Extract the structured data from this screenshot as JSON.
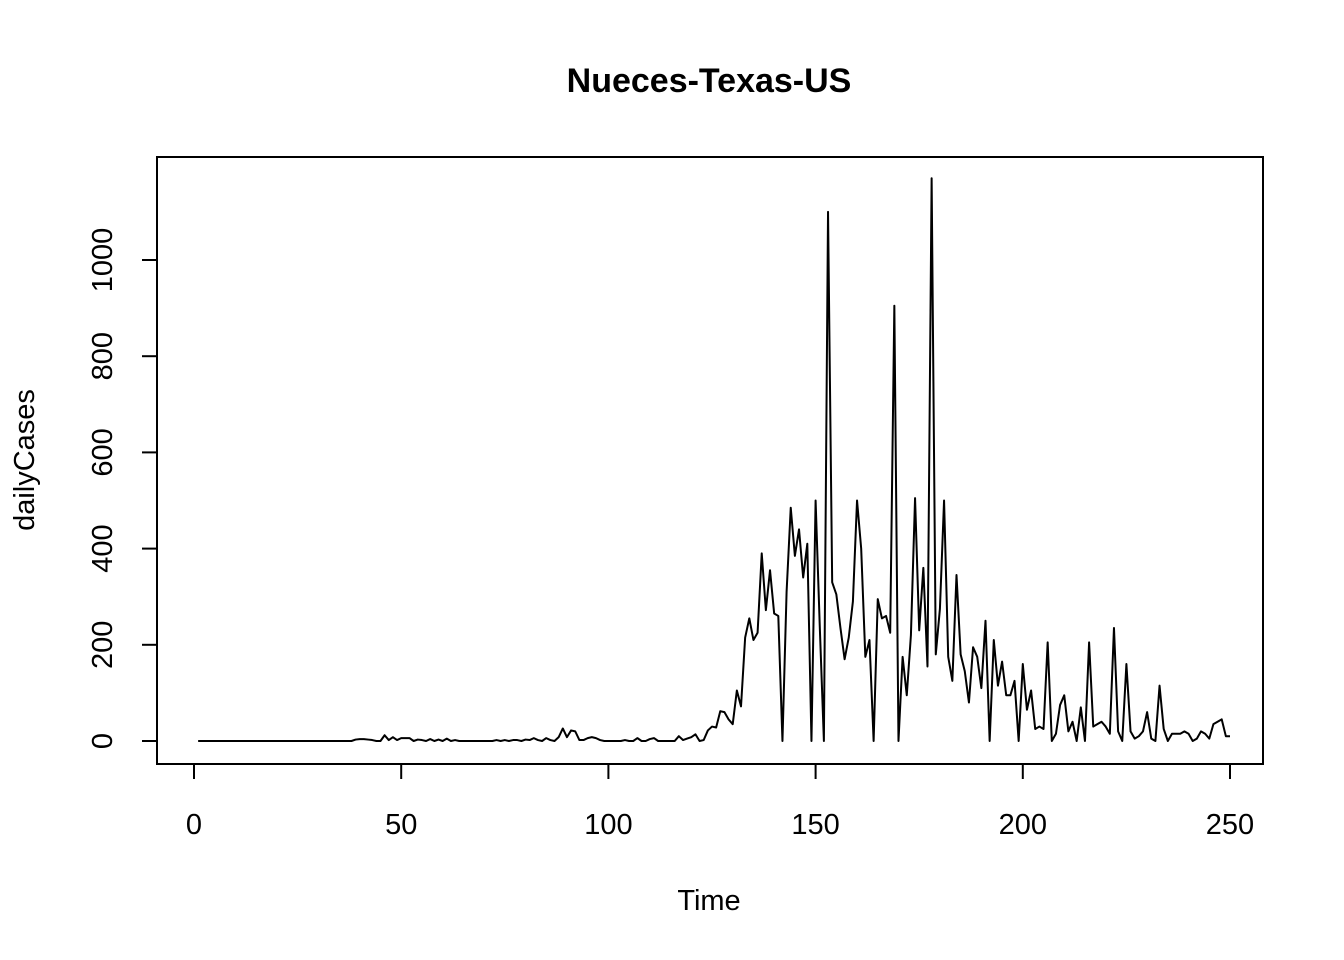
{
  "chart_data": {
    "type": "line",
    "title": "Nueces-Texas-US",
    "xlabel": "Time",
    "ylabel": "dailyCases",
    "xlim": [
      1,
      248
    ],
    "ylim": [
      0,
      1170
    ],
    "xticks": [
      0,
      50,
      100,
      150,
      200,
      250
    ],
    "yticks": [
      0,
      200,
      400,
      600,
      800,
      1000
    ],
    "grid": false,
    "legend": "none",
    "series": [
      {
        "values": [
          0,
          0,
          0,
          0,
          0,
          0,
          0,
          0,
          0,
          0,
          0,
          0,
          0,
          0,
          0,
          0,
          0,
          0,
          0,
          0,
          0,
          0,
          0,
          0,
          0,
          0,
          0,
          0,
          0,
          0,
          0,
          0,
          0,
          0,
          0,
          0,
          0,
          0,
          3,
          4,
          4,
          3,
          2,
          0,
          0,
          12,
          2,
          8,
          2,
          6,
          6,
          6,
          0,
          3,
          2,
          0,
          4,
          0,
          3,
          0,
          5,
          0,
          2,
          0,
          0,
          0,
          0,
          0,
          0,
          0,
          0,
          0,
          2,
          0,
          2,
          0,
          2,
          2,
          0,
          3,
          2,
          6,
          2,
          0,
          6,
          2,
          0,
          8,
          26,
          8,
          22,
          20,
          2,
          2,
          6,
          8,
          6,
          2,
          0,
          0,
          0,
          0,
          0,
          2,
          0,
          0,
          6,
          0,
          0,
          4,
          6,
          0,
          0,
          0,
          0,
          0,
          10,
          2,
          5,
          8,
          14,
          0,
          2,
          22,
          30,
          28,
          62,
          60,
          45,
          35,
          105,
          72,
          215,
          255,
          210,
          225,
          390,
          272,
          355,
          265,
          260,
          0,
          310,
          485,
          385,
          440,
          340,
          410,
          0,
          500,
          240,
          0,
          1100,
          330,
          305,
          235,
          170,
          215,
          290,
          500,
          400,
          175,
          210,
          0,
          295,
          255,
          260,
          225,
          905,
          0,
          175,
          95,
          220,
          505,
          230,
          360,
          155,
          1170,
          180,
          275,
          500,
          175,
          125,
          345,
          180,
          145,
          80,
          195,
          175,
          110,
          250,
          0,
          210,
          115,
          165,
          95,
          95,
          125,
          0,
          160,
          65,
          105,
          25,
          30,
          25,
          205,
          0,
          15,
          75,
          95,
          20,
          40,
          0,
          70,
          0,
          205,
          30,
          35,
          40,
          30,
          15,
          235,
          20,
          0,
          160,
          20,
          5,
          10,
          20,
          60,
          5,
          0,
          115,
          25,
          0,
          15,
          15,
          15,
          20,
          15,
          0,
          5,
          20,
          15,
          5,
          35,
          40,
          45,
          10,
          10
        ]
      }
    ]
  }
}
